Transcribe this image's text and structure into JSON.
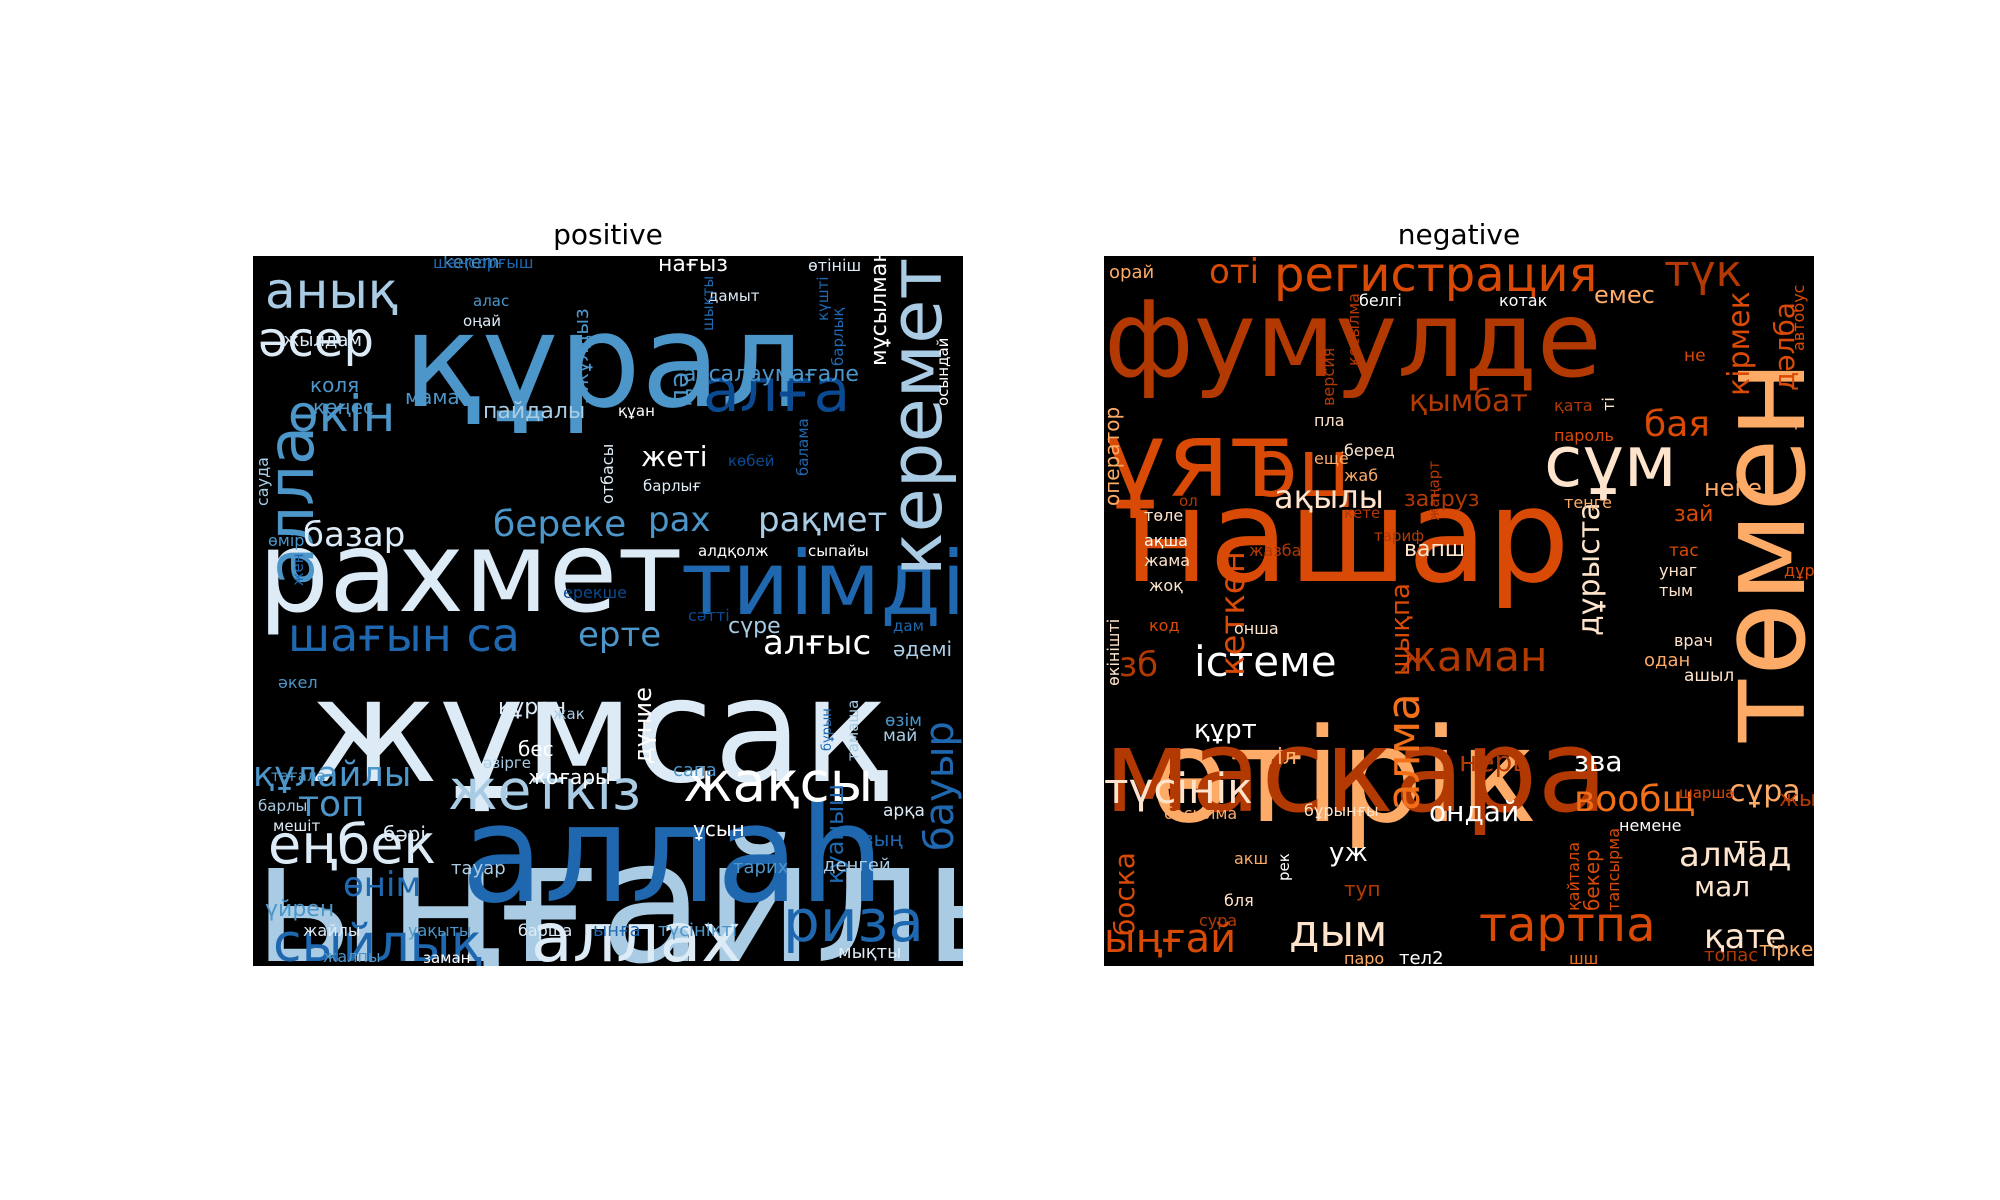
{
  "chart_data": [
    {
      "type": "wordcloud",
      "title": "positive",
      "background": "#000000",
      "colormap": "Blues",
      "words": [
        [
          "ыңғайлы",
          "#a9cce4"
        ],
        [
          "аллаһ",
          "#1f68b0"
        ],
        [
          "жұмсақ",
          "#ddebf7"
        ],
        [
          "құрал",
          "#4c96ca"
        ],
        [
          "рахмет",
          "#ddebf7"
        ],
        [
          "тиімді",
          "#1f68b0"
        ],
        [
          "керемет",
          "#a9cce4"
        ],
        [
          "алла",
          "#4c96ca"
        ],
        [
          "жақсы",
          "#ffffff"
        ],
        [
          "жеткіз",
          "#a9cce4"
        ],
        [
          "аллах",
          "#ddebf7"
        ],
        [
          "риза",
          "#1f68b0"
        ],
        [
          "еңбек",
          "#ddebf7"
        ],
        [
          "анық",
          "#a9cce4"
        ],
        [
          "әсер",
          "#ddebf7"
        ],
        [
          "алға",
          "#0b4a90"
        ],
        [
          "шағын са",
          "#1f68b0"
        ],
        [
          "сыйлық",
          "#1f68b0"
        ],
        [
          "өкін",
          "#4c96ca"
        ],
        [
          "бауыр",
          "#1f68b0"
        ],
        [
          "береке",
          "#4c96ca"
        ],
        [
          "рақмет",
          "#a9cce4"
        ],
        [
          "құлайлы",
          "#4c96ca"
        ],
        [
          "базар",
          "#ddebf7"
        ],
        [
          "алғыс",
          "#ffffff"
        ],
        [
          "ерте",
          "#4c96ca"
        ],
        [
          "топ",
          "#4c96ca"
        ],
        [
          "рах",
          "#4c96ca"
        ],
        [
          "өнім",
          "#1f68b0"
        ],
        [
          "мұсылман",
          "#ffffff"
        ],
        [
          "ассалаумағале",
          "#4c96ca"
        ],
        [
          "пайдалы",
          "#a9cce4"
        ],
        [
          "дүние",
          "#ffffff"
        ],
        [
          "қуаныш",
          "#1f68b0"
        ],
        [
          "5жұлдыз",
          "#4c96ca"
        ],
        [
          "жеті",
          "#ffffff"
        ],
        [
          "сүре",
          "#a9cce4"
        ],
        [
          "коля",
          "#4c96ca"
        ],
        [
          "кеңес",
          "#4c96ca"
        ],
        [
          "мама",
          "#4c96ca"
        ],
        [
          "жылдам",
          "#ddebf7"
        ],
        [
          "kerem",
          "#4c96ca"
        ],
        [
          "нағыз",
          "#ffffff"
        ],
        [
          "дә",
          "#4c96ca"
        ],
        [
          "құран",
          "#ddebf7"
        ],
        [
          "бес",
          "#ffffff"
        ],
        [
          "жоғары",
          "#ffffff"
        ],
        [
          "әдемі",
          "#a9cce4"
        ],
        [
          "сапа",
          "#4c96ca"
        ],
        [
          "сәтті",
          "#0b4a90"
        ],
        [
          "ерекше",
          "#0b4a90"
        ],
        [
          "зың",
          "#1f68b0"
        ],
        [
          "бәрі",
          "#ddebf7"
        ],
        [
          "ұсын",
          "#ffffff"
        ],
        [
          "деңгей",
          "#a9cce4"
        ],
        [
          "тауар",
          "#a9cce4"
        ],
        [
          "тарих",
          "#4c96ca"
        ],
        [
          "үйрен",
          "#4c96ca"
        ],
        [
          "жайлы",
          "#ddebf7"
        ],
        [
          "уақыты",
          "#4c96ca"
        ],
        [
          "барша",
          "#ddebf7"
        ],
        [
          "ынға",
          "#1f68b0"
        ],
        [
          "түсінікті",
          "#4c96ca"
        ],
        [
          "мықты",
          "#ddebf7"
        ],
        [
          "жалпы",
          "#4c96ca"
        ],
        [
          "заман",
          "#ffffff"
        ],
        [
          "тағала",
          "#4c96ca"
        ],
        [
          "барлы",
          "#a9cce4"
        ],
        [
          "мешіт",
          "#ddebf7"
        ],
        [
          "әкел",
          "#4c96ca"
        ],
        [
          "жак",
          "#a9cce4"
        ],
        [
          "әзірге",
          "#a9cce4"
        ],
        [
          "өмір",
          "#4c96ca"
        ],
        [
          "сауда",
          "#a9cce4"
        ],
        [
          "отбасы",
          "#ddebf7"
        ],
        [
          "барлығ",
          "#ddebf7"
        ],
        [
          "алдқолж",
          "#ffffff"
        ],
        [
          "сыпайы",
          "#ffffff"
        ],
        [
          "разы",
          "#ddebf7"
        ],
        [
          "шаңсорғыш",
          "#1f68b0"
        ],
        [
          "өтініш",
          "#ddebf7"
        ],
        [
          "дамыт",
          "#ddebf7"
        ],
        [
          "алас",
          "#4c96ca"
        ],
        [
          "оңай",
          "#ddebf7"
        ],
        [
          "құан",
          "#ffffff"
        ],
        [
          "көбей",
          "#0b4a90"
        ],
        [
          "балама",
          "#1f68b0"
        ],
        [
          "осындай",
          "#ffffff"
        ],
        [
          "шықты",
          "#1f68b0"
        ],
        [
          "барлық",
          "#1f68b0"
        ],
        [
          "күшті",
          "#1f68b0"
        ],
        [
          "тамаша",
          "#a9cce4"
        ],
        [
          "өзім",
          "#4c96ca"
        ],
        [
          "май",
          "#a9cce4"
        ],
        [
          "бұрын",
          "#1f68b0"
        ],
        [
          "дам",
          "#1f68b0"
        ],
        [
          "арқа",
          "#ddebf7"
        ],
        [
          "жен",
          "#1f68b0"
        ]
      ]
    },
    {
      "type": "wordcloud",
      "title": "negative",
      "background": "#000000",
      "colormap": "Oranges",
      "words": [
        [
          "нашар",
          "#d84a05"
        ],
        [
          "өтірік",
          "#fdab67"
        ],
        [
          "маскара",
          "#b33903"
        ],
        [
          "төмен",
          "#fdab67"
        ],
        [
          "фумулде",
          "#b33903"
        ],
        [
          "ұят",
          "#d84a05"
        ],
        [
          "эц",
          "#d84a05"
        ],
        [
          "сұм",
          "#fee4cc"
        ],
        [
          "регистрация",
          "#d84a05"
        ],
        [
          "түк",
          "#b33903"
        ],
        [
          "отi",
          "#d84a05"
        ],
        [
          "түсінік",
          "#fee4cc"
        ],
        [
          "істеме",
          "#ffffff"
        ],
        [
          "жаман",
          "#b33903"
        ],
        [
          "алма",
          "#f3701b"
        ],
        [
          "тартпа",
          "#d84a05"
        ],
        [
          "ақылы",
          "#fee4cc"
        ],
        [
          "дым",
          "#fee4cc"
        ],
        [
          "ыңғай",
          "#d84a05"
        ],
        [
          "кеткен",
          "#d84a05"
        ],
        [
          "дұрыста",
          "#fee4cc"
        ],
        [
          "қымбат",
          "#b33903"
        ],
        [
          "кірмек",
          "#d84a05"
        ],
        [
          "дәлба",
          "#d84a05"
        ],
        [
          "бая",
          "#d84a05"
        ],
        [
          "неге",
          "#fdab67"
        ],
        [
          "қате",
          "#fee4cc"
        ],
        [
          "алмад",
          "#fee4cc"
        ],
        [
          "вообщ",
          "#f3701b"
        ],
        [
          "сұра",
          "#fdab67"
        ],
        [
          "ондай",
          "#ffffff"
        ],
        [
          "зва",
          "#ffffff"
        ],
        [
          "нерв",
          "#b33903"
        ],
        [
          "құрт",
          "#ffffff"
        ],
        [
          "тіл",
          "#fdab67"
        ],
        [
          "загруз",
          "#b33903"
        ],
        [
          "вапш",
          "#fee4cc"
        ],
        [
          "зб",
          "#b33903"
        ],
        [
          "шықпа",
          "#d84a05"
        ],
        [
          "мал",
          "#fee4cc"
        ],
        [
          "тг",
          "#fee4cc"
        ],
        [
          "боска",
          "#d84a05"
        ],
        [
          "туп",
          "#b33903"
        ],
        [
          "уж",
          "#ffffff"
        ],
        [
          "емес",
          "#fdab67"
        ],
        [
          "оператор",
          "#fdab67"
        ],
        [
          "автобус",
          "#d84a05"
        ],
        [
          "жын",
          "#b33903"
        ],
        [
          "бекер",
          "#d84a05"
        ],
        [
          "тапсырма",
          "#d84a05"
        ],
        [
          "немене",
          "#ffffff"
        ],
        [
          "басылма",
          "#fdab67"
        ],
        [
          "бұрынғы",
          "#fee4cc"
        ],
        [
          "рек",
          "#ffffff"
        ],
        [
          "акш",
          "#fdab67"
        ],
        [
          "бля",
          "#fee4cc"
        ],
        [
          "сура",
          "#b33903"
        ],
        [
          "қайтала",
          "#d84a05"
        ],
        [
          "тірке",
          "#fdab67"
        ],
        [
          "тел2",
          "#ffffff"
        ],
        [
          "топас",
          "#b33903"
        ],
        [
          "паро",
          "#fdab67"
        ],
        [
          "шш",
          "#f3701b"
        ],
        [
          "орай",
          "#fdab67"
        ],
        [
          "белгі",
          "#ffffff"
        ],
        [
          "котак",
          "#ffffff"
        ],
        [
          "қосылма",
          "#b33903"
        ],
        [
          "версия",
          "#b33903"
        ],
        [
          "пла",
          "#fee4cc"
        ],
        [
          "ещё",
          "#fdab67"
        ],
        [
          "жаб",
          "#fdab67"
        ],
        [
          "беред",
          "#fee4cc"
        ],
        [
          "қата",
          "#b33903"
        ],
        [
          "пароль",
          "#d84a05"
        ],
        [
          "не",
          "#d84a05"
        ],
        [
          "ті",
          "#fee4cc"
        ],
        [
          "тир",
          "#fdab67"
        ],
        [
          "теңге",
          "#fdab67"
        ],
        [
          "зай",
          "#d84a05"
        ],
        [
          "тас",
          "#d84a05"
        ],
        [
          "унаг",
          "#fee4cc"
        ],
        [
          "тым",
          "#fee4cc"
        ],
        [
          "дұрыс",
          "#d84a05"
        ],
        [
          "врач",
          "#fee4cc"
        ],
        [
          "одан",
          "#fdab67"
        ],
        [
          "ашыл",
          "#fee4cc"
        ],
        [
          "жазба",
          "#b33903"
        ],
        [
          "тариф",
          "#b33903"
        ],
        [
          "жаңарт",
          "#b33903"
        ],
        [
          "кете",
          "#b33903"
        ],
        [
          "төле",
          "#fee4cc"
        ],
        [
          "ақша",
          "#ffffff"
        ],
        [
          "жама",
          "#fee4cc"
        ],
        [
          "жоқ",
          "#fee4cc"
        ],
        [
          "код",
          "#d84a05"
        ],
        [
          "онша",
          "#fee4cc"
        ],
        [
          "өкінішті",
          "#fee4cc"
        ],
        [
          "ол",
          "#b33903"
        ],
        [
          "шарша",
          "#d84a05"
        ]
      ]
    }
  ]
}
